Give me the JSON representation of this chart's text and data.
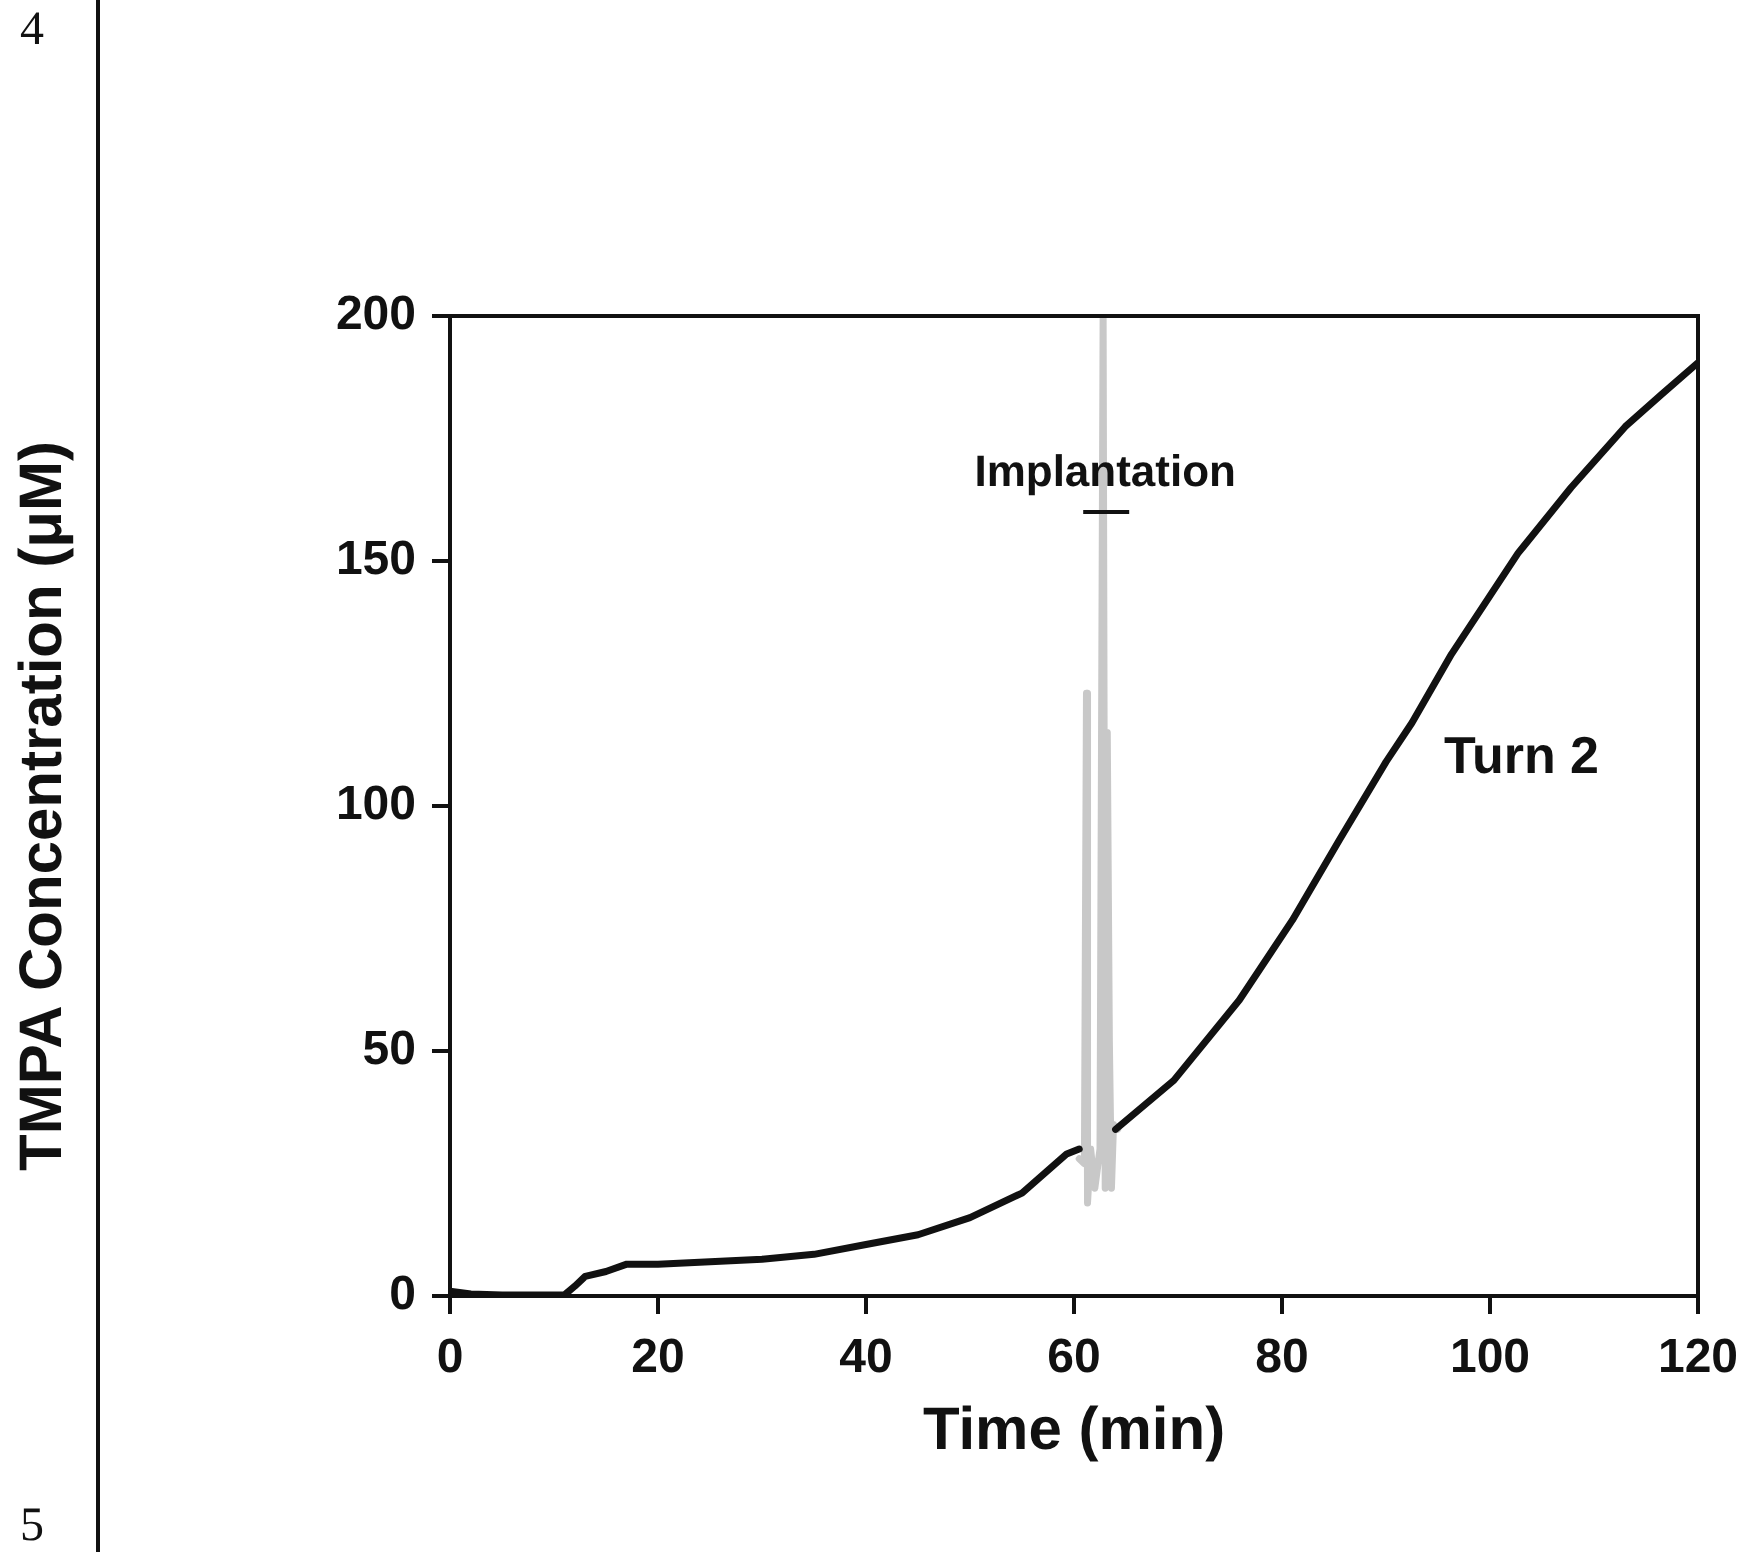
{
  "chart_data": {
    "type": "line",
    "xlabel": "Time (min)",
    "ylabel": "TMPA Concentration (μM)",
    "xlim": [
      0,
      120
    ],
    "xticks": [
      0,
      20,
      40,
      60,
      80,
      100,
      120
    ],
    "ylim": [
      0,
      200
    ],
    "yticks": [
      0,
      50,
      100,
      150,
      200
    ],
    "grid": false,
    "legend": false,
    "marker": "none",
    "line_style": "solid",
    "series": [
      {
        "color": "#111111",
        "x": [
          0,
          2,
          5,
          8,
          11,
          12,
          13,
          15,
          17,
          20,
          25,
          30,
          35,
          40,
          45,
          50,
          55,
          59.3,
          60.5,
          null,
          64,
          69.6,
          75.9,
          81,
          85.5,
          90,
          92.5,
          96.3,
          102.7,
          107.8,
          113,
          116.5,
          119.9
        ],
        "values": [
          1,
          0.4,
          0.2,
          0.2,
          0.2,
          2,
          4,
          5,
          6.5,
          6.5,
          7,
          7.5,
          8.5,
          10.5,
          12.5,
          16,
          21,
          29,
          30,
          null,
          34,
          44,
          60.4,
          76.7,
          93,
          109,
          117,
          131,
          151.6,
          165,
          177.4,
          184,
          190.3
        ]
      },
      {
        "color": "#c8c8c8",
        "x": [
          60.5,
          61.0,
          61.2,
          61.3,
          61.6,
          62.0,
          62.5,
          62.8,
          63.0,
          63.2,
          63.4,
          63.6,
          63.8,
          64.2
        ],
        "values": [
          28,
          27,
          123,
          19,
          30,
          22,
          30,
          200,
          22,
          115,
          52,
          22,
          35,
          34
        ]
      }
    ],
    "annotations": [
      {
        "text": "Implantation",
        "x": 63,
        "y": 160
      },
      {
        "text": "Turn 2",
        "x": 92.5,
        "y": 117
      },
      "4",
      "5"
    ]
  }
}
